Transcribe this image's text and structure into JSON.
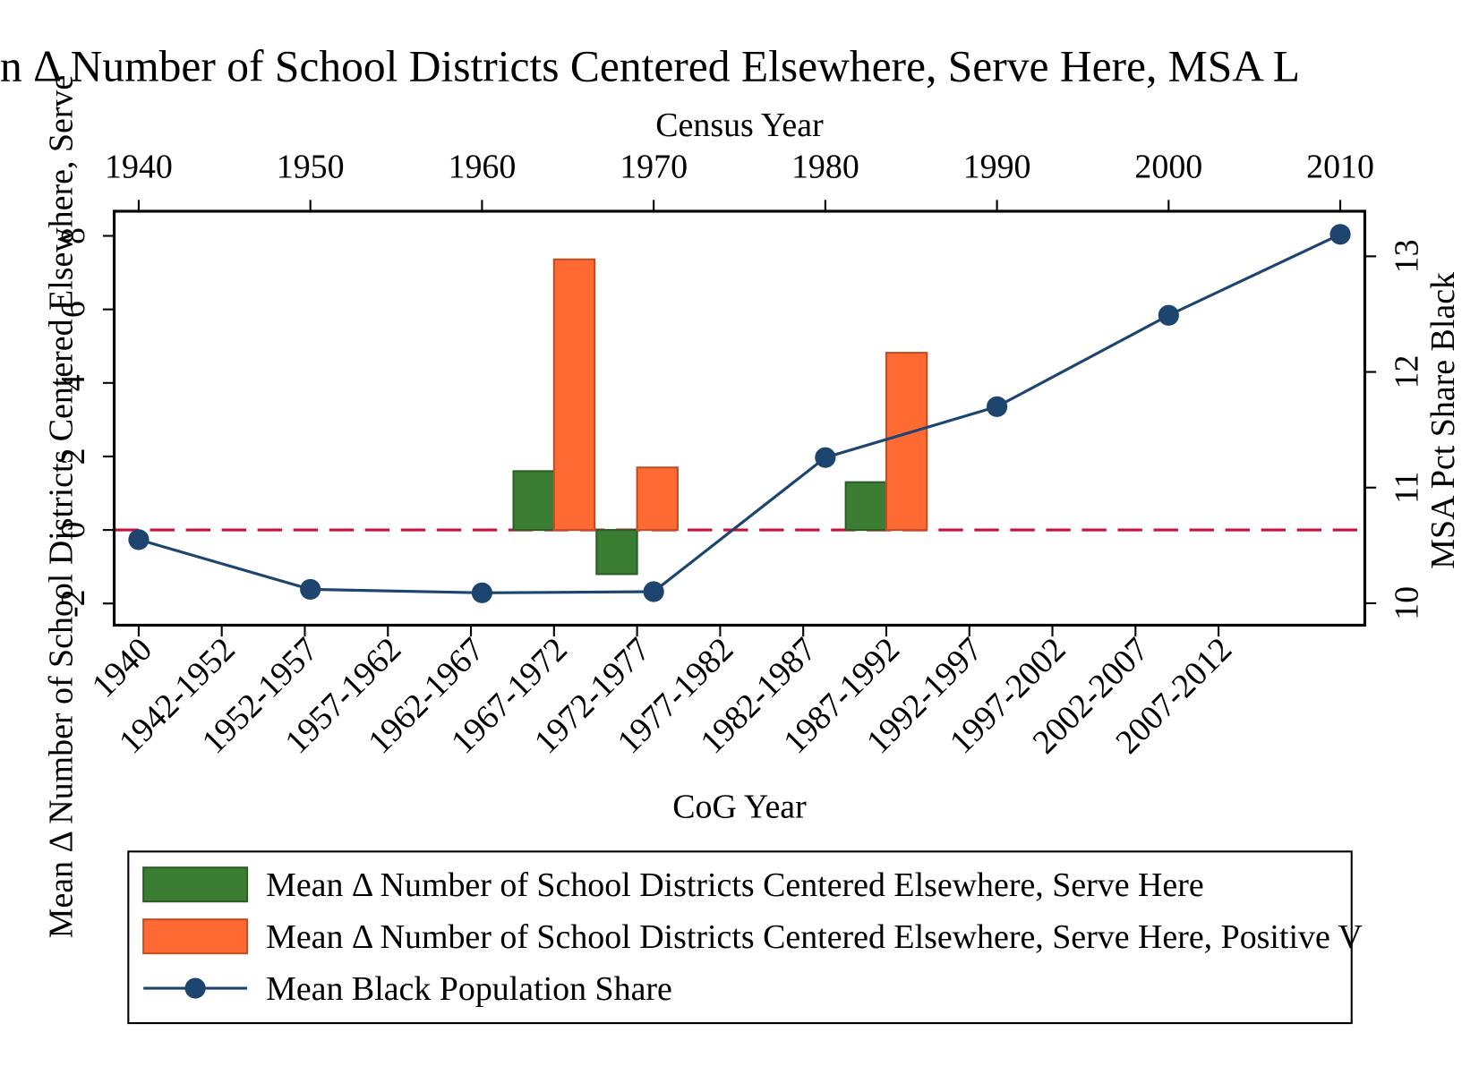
{
  "chart_data": {
    "type": "bar",
    "title": "n Δ Number of School Districts Centered Elsewhere, Serve Here, MSA L",
    "x_label": "CoG Year",
    "x2_label": "Census Year",
    "y_label": "Mean Δ Number of School Districts Centered Elsewhere, Serve",
    "y2_label": "MSA Pct Share Black",
    "categories": [
      "1940",
      "1942-1952",
      "1952-1957",
      "1957-1962",
      "1962-1967",
      "1967-1972",
      "1972-1977",
      "1977-1982",
      "1982-1987",
      "1987-1992",
      "1992-1997",
      "1997-2002",
      "2002-2007",
      "2007-2012"
    ],
    "ylim": [
      -2.59,
      8.67
    ],
    "yticks": [
      -2,
      0,
      2,
      4,
      6,
      8
    ],
    "y2lim": [
      9.81,
      13.39
    ],
    "y2ticks": [
      10,
      11,
      12,
      13
    ],
    "x2lim": [
      1938.57,
      2011.43
    ],
    "x2ticks": [
      1940,
      1950,
      1960,
      1970,
      1980,
      1990,
      2000,
      2010
    ],
    "hline": {
      "value": 0,
      "color": "#c8103c"
    },
    "legend": "bottom",
    "series": [
      {
        "name": "Mean Δ Number of School Districts Centered Elsewhere, Serve Here",
        "type": "bar",
        "color": "#3a7d33",
        "values": [
          null,
          null,
          null,
          null,
          null,
          1.6,
          -1.2,
          null,
          null,
          1.3,
          null,
          null,
          null,
          null
        ]
      },
      {
        "name": "Mean Δ Number of School Districts Centered Elsewhere, Serve Here, Positive V",
        "type": "bar",
        "color": "#ff6a33",
        "values": [
          null,
          null,
          null,
          null,
          null,
          7.36,
          1.7,
          null,
          null,
          4.82,
          null,
          null,
          null,
          null
        ]
      },
      {
        "name": "Mean Black Population Share",
        "type": "line",
        "axis": "y2",
        "color": "#1e4570",
        "x": [
          1940,
          1950,
          1960,
          1970,
          1980,
          1990,
          2000,
          2010
        ],
        "values": [
          10.55,
          10.12,
          10.09,
          10.1,
          11.26,
          11.7,
          12.49,
          13.19
        ]
      }
    ]
  }
}
